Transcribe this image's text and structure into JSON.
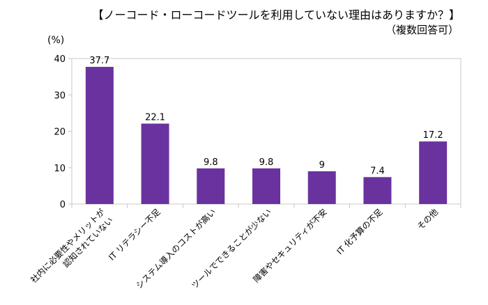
{
  "chart_data": {
    "type": "bar",
    "title": "【ノーコード・ローコードツールを利用していない理由はありますか？】",
    "subtitle": "（複数回答可）",
    "ylabel": "(%)",
    "xlabel": "",
    "ylim": [
      0,
      40
    ],
    "yticks": [
      0,
      10,
      20,
      30,
      40
    ],
    "grid": false,
    "categories": [
      [
        "社内に必要性やメリットが",
        "認知されていない"
      ],
      [
        "IT リテラシー不足"
      ],
      [
        "システム導入のコストが高い"
      ],
      [
        "ツールでできることが少ない"
      ],
      [
        "障害やセキュリティが不安"
      ],
      [
        "IT 化予算の不足"
      ],
      [
        "その他"
      ]
    ],
    "values": [
      37.7,
      22.1,
      9.8,
      9.8,
      9,
      7.4,
      17.2
    ],
    "data_labels": [
      "37.7",
      "22.1",
      "9.8",
      "9.8",
      "9",
      "7.4",
      "17.2"
    ],
    "bar_color": "#6a329f"
  }
}
